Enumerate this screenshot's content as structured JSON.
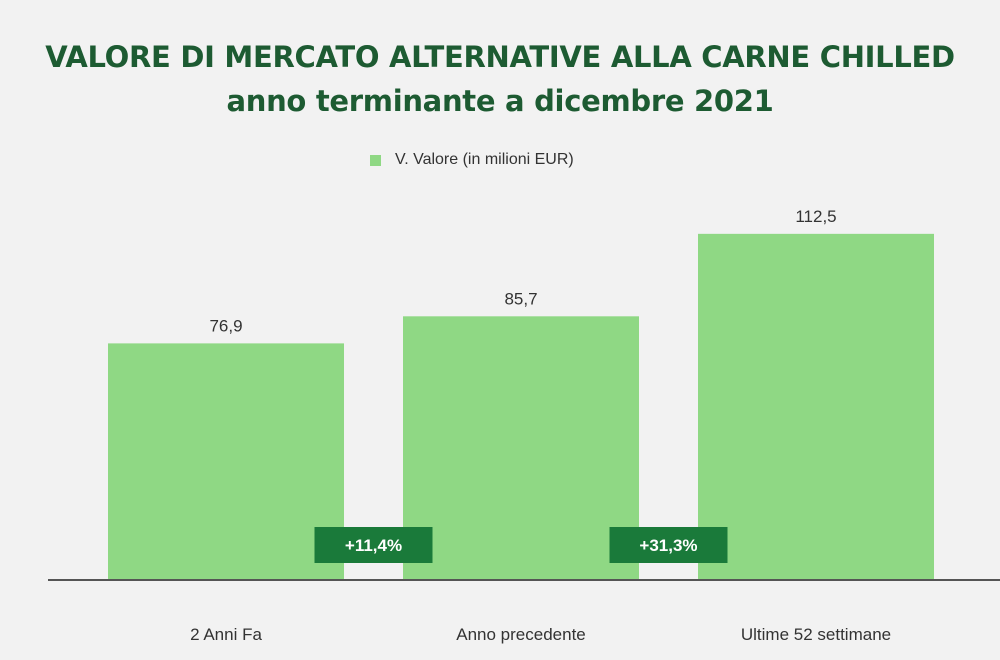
{
  "chart_data": {
    "type": "bar",
    "title": "VALORE DI MERCATO ALTERNATIVE ALLA CARNE CHILLED",
    "subtitle": "anno terminante a dicembre 2021",
    "categories": [
      "2 Anni Fa",
      "Anno precedente",
      "Ultime 52 settimane"
    ],
    "series": [
      {
        "name": "V. Valore (in milioni EUR)",
        "values": [
          76.9,
          85.7,
          112.5
        ]
      }
    ],
    "data_labels": [
      "76,9",
      "85,7",
      "112,5"
    ],
    "growth_badges": [
      "+11,4%",
      "+31,3%"
    ],
    "ylim": [
      0,
      130
    ],
    "grid": false,
    "legend_position": "top",
    "colors": {
      "bar": "#8fd884",
      "badge": "#1a7a3a",
      "title": "#1d5b32",
      "axis": "#555555"
    }
  }
}
